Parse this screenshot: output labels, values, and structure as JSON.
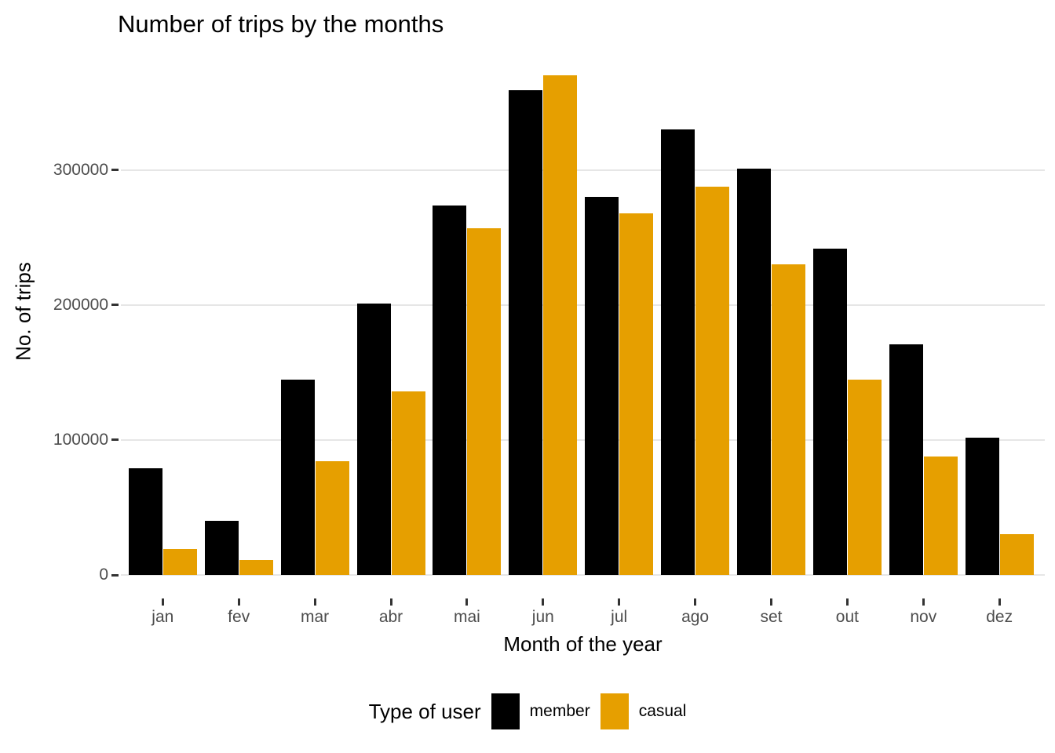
{
  "chart_data": {
    "type": "bar",
    "title": "Number of trips by the months",
    "xlabel": "Month of the year",
    "ylabel": "No. of trips",
    "categories": [
      "jan",
      "fev",
      "mar",
      "abr",
      "mai",
      "jun",
      "jul",
      "ago",
      "set",
      "out",
      "nov",
      "dez"
    ],
    "series": [
      {
        "name": "member",
        "color": "#000000",
        "values": [
          79000,
          40000,
          145000,
          201000,
          274000,
          359000,
          280000,
          330000,
          301000,
          242000,
          171000,
          102000
        ]
      },
      {
        "name": "casual",
        "color": "#E69F00",
        "values": [
          19000,
          11000,
          84000,
          136000,
          257000,
          370000,
          268000,
          288000,
          230000,
          145000,
          88000,
          30000
        ]
      }
    ],
    "y_ticks": [
      0,
      100000,
      200000,
      300000
    ],
    "y_tick_labels": [
      "0",
      "100000",
      "200000",
      "300000"
    ],
    "ylim": [
      0,
      390000
    ],
    "grid": "horizontal-major-only",
    "legend": {
      "title": "Type of user",
      "position": "bottom",
      "entries": [
        "member",
        "casual"
      ]
    },
    "colors": {
      "background": "#FFFFFF",
      "gridline": "#E6E6E6",
      "tick_mark": "#333333",
      "tick_label": "#4D4D4D",
      "text": "#000000"
    }
  }
}
